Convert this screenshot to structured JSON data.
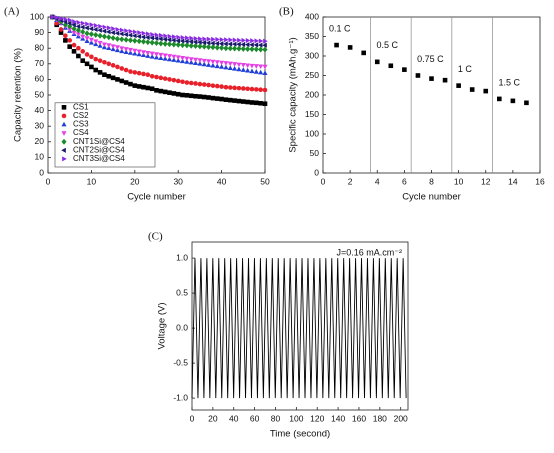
{
  "chart_data": [
    {
      "type": "scatter",
      "panel_label": "(A)",
      "xlabel": "Cycle number",
      "ylabel": "Capacity retention (%)",
      "x": [
        1,
        2,
        3,
        4,
        5,
        6,
        7,
        8,
        9,
        10,
        11,
        12,
        13,
        14,
        15,
        16,
        17,
        18,
        19,
        20,
        21,
        22,
        23,
        24,
        25,
        26,
        27,
        28,
        29,
        30,
        31,
        32,
        33,
        34,
        35,
        36,
        37,
        38,
        39,
        40,
        41,
        42,
        43,
        44,
        45,
        46,
        47,
        48,
        49,
        50
      ],
      "xlim": [
        0,
        50
      ],
      "xticks": [
        0,
        10,
        20,
        30,
        40,
        50
      ],
      "ylim": [
        0,
        100
      ],
      "yticks": [
        0,
        10,
        20,
        30,
        40,
        50,
        60,
        70,
        80,
        90,
        100
      ],
      "legend": "lower left",
      "series": [
        {
          "name": "CS1",
          "color": "#000000",
          "marker": "square",
          "values": [
            100,
            95,
            90,
            85,
            81,
            78,
            75,
            72,
            70,
            68,
            66,
            64.5,
            63,
            62,
            61,
            60,
            59,
            58,
            57,
            56,
            55.5,
            55,
            54.5,
            54,
            53,
            52.5,
            52,
            51.5,
            51,
            50.5,
            50,
            49.8,
            49.5,
            49.2,
            49,
            48.7,
            48.4,
            48,
            47.7,
            47.4,
            47,
            46.7,
            46.4,
            46.1,
            45.8,
            45.5,
            45.2,
            45,
            44.7,
            44.4
          ]
        },
        {
          "name": "CS2",
          "color": "#e8202a",
          "marker": "circle",
          "values": [
            100,
            96,
            92,
            88,
            85,
            82,
            80,
            78,
            76,
            74.5,
            73,
            72,
            71,
            70,
            69,
            68,
            67,
            66,
            65,
            64.5,
            64,
            63.5,
            63,
            62,
            61.5,
            61,
            60.5,
            60,
            59.5,
            59,
            58.5,
            58,
            57.7,
            57.4,
            57,
            56.7,
            56.4,
            56,
            55.7,
            55.4,
            55,
            54.8,
            54.6,
            54.4,
            54.2,
            54,
            53.8,
            53.6,
            53.4,
            53.2
          ]
        },
        {
          "name": "CS3",
          "color": "#1f3fd6",
          "marker": "triangle-up",
          "values": [
            100,
            98,
            96,
            93,
            91,
            89,
            87.5,
            86,
            84.5,
            83.5,
            82.5,
            81.5,
            80.5,
            80,
            79.3,
            78.7,
            78,
            77.5,
            77,
            76.5,
            76,
            75.5,
            75,
            74.5,
            74,
            73.6,
            73.2,
            72.8,
            72.4,
            72,
            71.6,
            71.2,
            70.8,
            70.4,
            70,
            69.6,
            69.2,
            68.8,
            68.4,
            68,
            67.6,
            67.2,
            66.8,
            66.4,
            66,
            65.6,
            65.2,
            64.8,
            64.4,
            64
          ]
        },
        {
          "name": "CS4",
          "color": "#e43fe6",
          "marker": "triangle-down",
          "values": [
            100,
            98,
            96,
            94,
            92,
            90,
            89,
            87.5,
            86.5,
            85.5,
            84.5,
            83.5,
            82.5,
            82,
            81.3,
            80.7,
            80,
            79.5,
            79,
            78.5,
            78,
            77.5,
            77,
            76.6,
            76.2,
            75.8,
            75.4,
            75,
            74.6,
            74.2,
            73.8,
            73.4,
            73,
            72.7,
            72.4,
            72,
            71.7,
            71.4,
            71.1,
            70.8,
            70.5,
            70.2,
            69.9,
            69.6,
            69.3,
            69,
            68.8,
            68.6,
            68.4,
            68.2
          ]
        },
        {
          "name": "CNT1Si@CS4",
          "color": "#1a8a2a",
          "marker": "diamond",
          "values": [
            100,
            99,
            97,
            95,
            94,
            92.5,
            91.5,
            90.5,
            89.5,
            89,
            88.5,
            88,
            87.5,
            87,
            86.5,
            86,
            85.7,
            85.4,
            85.1,
            84.8,
            84.5,
            84.2,
            83.9,
            83.6,
            83.3,
            83,
            82.8,
            82.6,
            82.4,
            82.2,
            82,
            81.8,
            81.6,
            81.4,
            81.2,
            81,
            80.8,
            80.6,
            80.4,
            80.2,
            80,
            79.9,
            79.8,
            79.7,
            79.6,
            79.5,
            79.4,
            79.3,
            79.2,
            79.1
          ]
        },
        {
          "name": "CNT2Si@CS4",
          "color": "#1a1a6e",
          "marker": "triangle-left",
          "values": [
            100,
            99,
            98,
            97,
            96,
            95,
            94,
            93.5,
            93,
            92.5,
            92,
            91.5,
            91,
            90.5,
            90,
            89.6,
            89.2,
            88.8,
            88.4,
            88,
            87.6,
            87.2,
            86.9,
            86.6,
            86.3,
            86,
            85.7,
            85.4,
            85.1,
            84.8,
            84.6,
            84.4,
            84.2,
            84,
            83.8,
            83.6,
            83.4,
            83.2,
            83,
            82.9,
            82.8,
            82.7,
            82.6,
            82.5,
            82.4,
            82.3,
            82.2,
            82.1,
            82,
            81.9
          ]
        },
        {
          "name": "CNT3Si@CS4",
          "color": "#8a2be2",
          "marker": "triangle-right",
          "values": [
            100,
            99.5,
            99,
            98.5,
            98,
            97,
            96.5,
            96,
            95.5,
            95,
            94.5,
            94,
            93.5,
            93,
            92.5,
            92,
            91.6,
            91.2,
            90.8,
            90.4,
            90,
            89.6,
            89.2,
            88.8,
            88.5,
            88.2,
            87.9,
            87.6,
            87.3,
            87,
            86.8,
            86.6,
            86.4,
            86.2,
            86,
            85.9,
            85.8,
            85.7,
            85.6,
            85.5,
            85.4,
            85.3,
            85.2,
            85.1,
            85,
            84.9,
            84.8,
            84.7,
            84.6,
            84.5
          ]
        }
      ]
    },
    {
      "type": "scatter",
      "panel_label": "(B)",
      "xlabel": "Cycle number",
      "ylabel": "Specific capacity (mAh.g⁻¹)",
      "x": [
        1,
        2,
        3,
        4,
        5,
        6,
        7,
        8,
        9,
        10,
        11,
        12,
        13,
        14,
        15
      ],
      "xlim": [
        0,
        16
      ],
      "xticks": [
        0,
        2,
        4,
        6,
        8,
        10,
        12,
        14,
        16
      ],
      "ylim": [
        0,
        400
      ],
      "yticks": [
        0,
        50,
        100,
        150,
        200,
        250,
        300,
        350,
        400
      ],
      "vlines": [
        3.5,
        6.5,
        9.5,
        12.5
      ],
      "annotations": [
        "0.1 C",
        "0.5 C",
        "0.75 C",
        "1 C",
        "1.5 C"
      ],
      "series": [
        {
          "color": "#000000",
          "marker": "square",
          "values": [
            328,
            322,
            308,
            285,
            275,
            265,
            250,
            242,
            238,
            224,
            214,
            210,
            190,
            185,
            180
          ]
        }
      ]
    },
    {
      "type": "line",
      "panel_label": "(C)",
      "xlabel": "Time (second)",
      "ylabel": "Voltage (V)",
      "annotation": "J=0.16 mA.cm⁻²",
      "color": "#000000",
      "x": [
        0,
        2.85,
        5.7,
        8.55,
        11.4,
        14.25,
        17.1,
        19.95,
        22.8,
        25.65,
        28.5,
        31.35,
        34.2,
        37.05,
        39.9,
        42.75,
        45.6,
        48.45,
        51.3,
        54.15,
        57,
        59.85,
        62.7,
        65.55,
        68.4,
        71.25,
        74.1,
        76.95,
        79.8,
        82.65,
        85.5,
        88.35,
        91.2,
        94.05,
        96.9,
        99.75,
        102.6,
        105.45,
        108.3,
        111.15,
        114,
        116.85,
        119.7,
        122.55,
        125.4,
        128.25,
        131.1,
        133.95,
        136.8,
        139.65,
        142.5,
        145.35,
        148.2,
        151.05,
        153.9,
        156.75,
        159.6,
        162.45,
        165.3,
        168.15,
        171,
        173.85,
        176.7,
        179.55,
        182.4,
        185.25,
        188.1,
        190.95,
        193.8,
        196.65,
        199.5,
        202.35,
        205.2
      ],
      "values": [
        -1,
        1,
        -1,
        1,
        -1,
        1,
        -1,
        1,
        -1,
        1,
        -1,
        1,
        -1,
        1,
        -1,
        1,
        -1,
        1,
        -1,
        1,
        -1,
        1,
        -1,
        1,
        -1,
        1,
        -1,
        1,
        -1,
        1,
        -1,
        1,
        -1,
        1,
        -1,
        1,
        -1,
        1,
        -1,
        1,
        -1,
        1,
        -1,
        1,
        -1,
        1,
        -1,
        1,
        -1,
        1,
        -1,
        1,
        -1,
        1,
        -1,
        1,
        -1,
        1,
        -1,
        1,
        -1,
        1,
        -1,
        1,
        -1,
        1,
        -1,
        1,
        -1,
        1,
        -1,
        1,
        -1
      ],
      "xlim": [
        0,
        207
      ],
      "xticks": [
        0,
        20,
        40,
        60,
        80,
        100,
        120,
        140,
        160,
        180,
        200
      ],
      "ylim": [
        -1.17,
        1.23
      ],
      "yticks": [
        {
          "value": -1,
          "label": "-1.0"
        },
        {
          "value": -0.5,
          "label": "-0.5"
        },
        {
          "value": 0,
          "label": "0.0"
        },
        {
          "value": 0.5,
          "label": "0.5"
        },
        {
          "value": 1,
          "label": "1.0"
        }
      ]
    }
  ]
}
